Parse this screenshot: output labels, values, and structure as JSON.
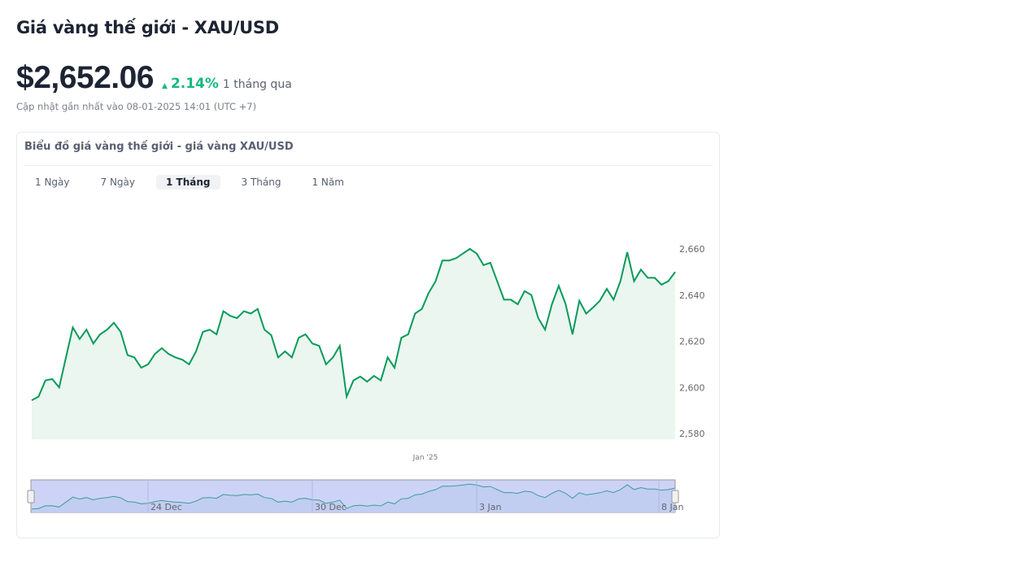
{
  "header": {
    "title": "Giá vàng thế giới - XAU/USD",
    "price": "$2,652.06",
    "change": "2.14%",
    "change_period": "1 tháng qua",
    "updated": "Cập nhật gần nhất vào 08-01-2025 14:01 (UTC +7)"
  },
  "card": {
    "title": "Biểu đồ giá vàng thế giới - giá vàng XAU/USD",
    "tabs": [
      {
        "label": "1 Ngày"
      },
      {
        "label": "7 Ngày"
      },
      {
        "label": "1 Tháng",
        "active": true
      },
      {
        "label": "3 Tháng"
      },
      {
        "label": "1 Năm"
      }
    ]
  },
  "colors": {
    "line": "#0a9a5a",
    "fill": "#eaf6ef",
    "up": "#16b97d",
    "navigator_bg": "#cdd3f7",
    "navigator_line": "#3a9e9a"
  },
  "chart_data": {
    "type": "area",
    "y_ticks": [
      "2,580",
      "2,600",
      "2,620",
      "2,640",
      "2,660"
    ],
    "ylim": [
      2580,
      2665
    ],
    "x_label_main": "Jan '25",
    "navigator_labels": [
      "24 Dec",
      "30 Dec",
      "3 Jan",
      "8 Jan"
    ],
    "values": [
      2594.4,
      2596,
      2603,
      2603.6,
      2600,
      2613,
      2626,
      2621,
      2625,
      2619,
      2623,
      2625,
      2628,
      2624,
      2614,
      2613,
      2608.5,
      2610,
      2614.5,
      2617,
      2614.5,
      2613,
      2612,
      2610,
      2615.6,
      2624,
      2625,
      2623,
      2633,
      2631,
      2630,
      2633,
      2632,
      2634,
      2625,
      2622.6,
      2613,
      2615.6,
      2613,
      2621.5,
      2623,
      2619,
      2618,
      2610,
      2613,
      2618,
      2596,
      2603,
      2604.7,
      2602.5,
      2605,
      2603,
      2613,
      2608.5,
      2621.5,
      2623,
      2632,
      2634,
      2641,
      2646,
      2655,
      2655,
      2656,
      2658,
      2660,
      2658,
      2653,
      2654,
      2646,
      2638,
      2638,
      2636,
      2641.7,
      2640,
      2630,
      2625,
      2636,
      2644,
      2636,
      2623,
      2637.5,
      2632,
      2634.6,
      2637.5,
      2642.7,
      2638,
      2646,
      2658.6,
      2646,
      2651,
      2647.5,
      2647.5,
      2644.5,
      2646,
      2650
    ]
  }
}
